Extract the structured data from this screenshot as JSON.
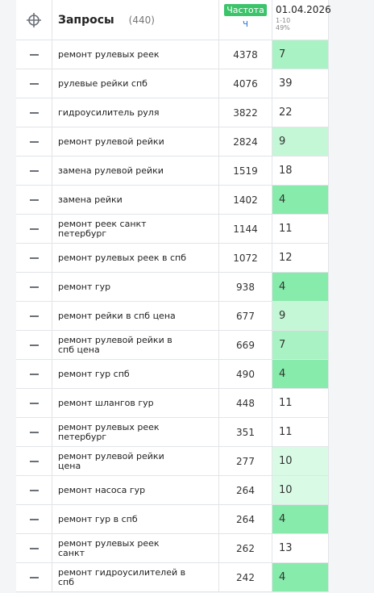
{
  "header": {
    "query_title": "Запросы",
    "query_count": "(440)",
    "freq_badge": "Частота",
    "freq_sub": "ч",
    "date": "01.04.2026",
    "range": "1-10",
    "percent": "49%"
  },
  "rows": [
    {
      "query": "ремонт рулевых реек",
      "frequency": 4378,
      "position": 7,
      "color": "#a9f2c4"
    },
    {
      "query": "рулевые рейки спб",
      "frequency": 4076,
      "position": 39,
      "color": "#ffffff"
    },
    {
      "query": "гидроусилитель руля",
      "frequency": 3822,
      "position": 22,
      "color": "#ffffff"
    },
    {
      "query": "ремонт рулевой рейки",
      "frequency": 2824,
      "position": 9,
      "color": "#c4f7d6"
    },
    {
      "query": "замена рулевой рейки",
      "frequency": 1519,
      "position": 18,
      "color": "#ffffff"
    },
    {
      "query": "замена рейки",
      "frequency": 1402,
      "position": 4,
      "color": "#86ebab"
    },
    {
      "query": "ремонт реек санкт петербург",
      "frequency": 1144,
      "position": 11,
      "color": "#ffffff"
    },
    {
      "query": "ремонт рулевых реек в спб",
      "frequency": 1072,
      "position": 12,
      "color": "#ffffff"
    },
    {
      "query": "ремонт гур",
      "frequency": 938,
      "position": 4,
      "color": "#86ebab"
    },
    {
      "query": "ремонт рейки в спб цена",
      "frequency": 677,
      "position": 9,
      "color": "#c4f7d6"
    },
    {
      "query": "ремонт рулевой рейки в спб цена",
      "frequency": 669,
      "position": 7,
      "color": "#a9f2c4"
    },
    {
      "query": "ремонт гур спб",
      "frequency": 490,
      "position": 4,
      "color": "#86ebab"
    },
    {
      "query": "ремонт шлангов гур",
      "frequency": 448,
      "position": 11,
      "color": "#ffffff"
    },
    {
      "query": "ремонт рулевых реек петербург",
      "frequency": 351,
      "position": 11,
      "color": "#ffffff"
    },
    {
      "query": "ремонт рулевой рейки цена",
      "frequency": 277,
      "position": 10,
      "color": "#d9fbe6"
    },
    {
      "query": "ремонт насоса гур",
      "frequency": 264,
      "position": 10,
      "color": "#d9fbe6"
    },
    {
      "query": "ремонт гур в спб",
      "frequency": 264,
      "position": 4,
      "color": "#86ebab"
    },
    {
      "query": "ремонт рулевых реек санкт",
      "frequency": 262,
      "position": 13,
      "color": "#ffffff"
    },
    {
      "query": "ремонт гидроусилителей в спб",
      "frequency": 242,
      "position": 4,
      "color": "#86ebab"
    }
  ]
}
